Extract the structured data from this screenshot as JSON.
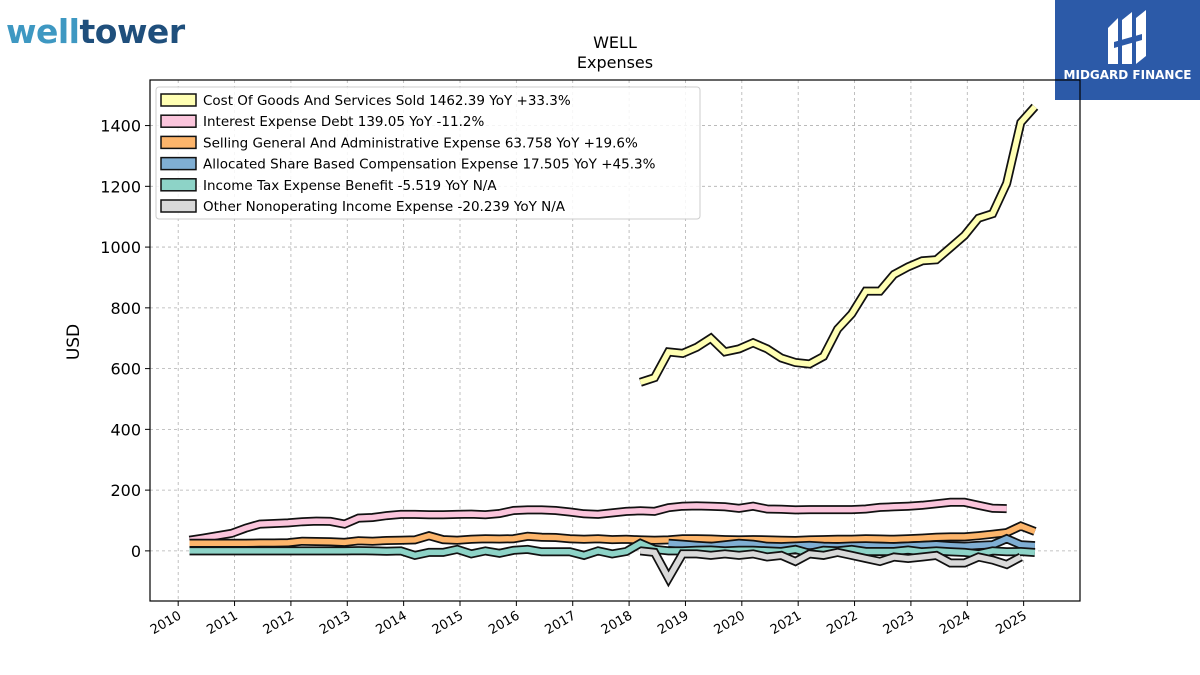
{
  "logos": {
    "left_part1": "well",
    "left_part2": "tower",
    "right_brand": "MIDGARD FINANCE"
  },
  "colors": {
    "cogs": "#ffffb3",
    "interest": "#fbc5dc",
    "sga": "#fdb56b",
    "sbc": "#7faed3",
    "tax": "#8dd3c7",
    "other": "#d9d9d9",
    "outline": "#111111",
    "grid": "#b0b0b0"
  },
  "chart_data": {
    "type": "line",
    "title": "WELL",
    "subtitle": "Expenses",
    "ylabel": "USD",
    "xlabel": "",
    "xlim": [
      2009.5,
      2026.0
    ],
    "ylim": [
      -165,
      1550
    ],
    "yticks": [
      0,
      200,
      400,
      600,
      800,
      1000,
      1200,
      1400
    ],
    "xticks": [
      "2010",
      "2011",
      "2012",
      "2013",
      "2014",
      "2015",
      "2016",
      "2017",
      "2018",
      "2019",
      "2020",
      "2021",
      "2022",
      "2023",
      "2024",
      "2025"
    ],
    "grid": true,
    "legend_position": "top-left",
    "series": [
      {
        "name": "Cost Of Goods And Services Sold  1462.39 YoY +33.3%",
        "color_key": "cogs",
        "x": [
          2018.2,
          2018.45,
          2018.7,
          2018.95,
          2019.2,
          2019.45,
          2019.7,
          2019.95,
          2020.2,
          2020.45,
          2020.7,
          2020.95,
          2021.2,
          2021.45,
          2021.7,
          2021.95,
          2022.2,
          2022.45,
          2022.7,
          2022.95,
          2023.2,
          2023.45,
          2023.7,
          2023.95,
          2024.2,
          2024.45,
          2024.7,
          2024.95,
          2025.2
        ],
        "y": [
          555,
          570,
          655,
          650,
          670,
          700,
          655,
          665,
          685,
          665,
          635,
          620,
          615,
          640,
          730,
          780,
          855,
          855,
          910,
          935,
          955,
          958,
          998,
          1038,
          1095,
          1110,
          1210,
          1410,
          1462
        ]
      },
      {
        "name": "Interest Expense Debt  139.05 YoY -11.2%",
        "color_key": "interest",
        "x": [
          2010.2,
          2010.45,
          2010.7,
          2010.95,
          2011.2,
          2011.45,
          2011.7,
          2011.95,
          2012.2,
          2012.45,
          2012.7,
          2012.95,
          2013.2,
          2013.45,
          2013.7,
          2013.95,
          2014.2,
          2014.45,
          2014.7,
          2014.95,
          2015.2,
          2015.45,
          2015.7,
          2015.95,
          2016.2,
          2016.45,
          2016.7,
          2016.95,
          2017.2,
          2017.45,
          2017.7,
          2017.95,
          2018.2,
          2018.45,
          2018.7,
          2018.95,
          2019.2,
          2019.45,
          2019.7,
          2019.95,
          2020.2,
          2020.45,
          2020.7,
          2020.95,
          2021.2,
          2021.45,
          2021.7,
          2021.95,
          2022.2,
          2022.45,
          2022.7,
          2022.95,
          2023.2,
          2023.45,
          2023.7,
          2023.95,
          2024.2,
          2024.45,
          2024.7
        ],
        "y": [
          35,
          42,
          50,
          58,
          75,
          88,
          90,
          92,
          96,
          98,
          97,
          88,
          108,
          110,
          116,
          120,
          120,
          119,
          119,
          120,
          121,
          119,
          123,
          133,
          135,
          135,
          133,
          128,
          122,
          120,
          125,
          130,
          132,
          130,
          142,
          147,
          148,
          147,
          145,
          140,
          147,
          138,
          137,
          135,
          136,
          136,
          136,
          136,
          138,
          143,
          145,
          147,
          150,
          155,
          160,
          160,
          150,
          140,
          139
        ]
      },
      {
        "name": "Selling General And Administrative Expense  63.758 YoY +19.6%",
        "color_key": "sga",
        "x": [
          2010.2,
          2010.45,
          2010.7,
          2010.95,
          2011.2,
          2011.45,
          2011.7,
          2011.95,
          2012.2,
          2012.45,
          2012.7,
          2012.95,
          2013.2,
          2013.45,
          2013.7,
          2013.95,
          2014.2,
          2014.45,
          2014.7,
          2014.95,
          2015.2,
          2015.45,
          2015.7,
          2015.95,
          2016.2,
          2016.45,
          2016.7,
          2016.95,
          2017.2,
          2017.45,
          2017.7,
          2017.95,
          2018.2,
          2018.45,
          2018.7,
          2018.95,
          2019.2,
          2019.45,
          2019.7,
          2019.95,
          2020.2,
          2020.45,
          2020.7,
          2020.95,
          2021.2,
          2021.45,
          2021.7,
          2021.95,
          2022.2,
          2022.45,
          2022.7,
          2022.95,
          2023.2,
          2023.45,
          2023.7,
          2023.95,
          2024.2,
          2024.45,
          2024.7,
          2024.95,
          2025.2
        ],
        "y": [
          25,
          25,
          25,
          25,
          25,
          26,
          26,
          27,
          32,
          31,
          30,
          28,
          33,
          32,
          34,
          35,
          36,
          50,
          37,
          35,
          38,
          40,
          39,
          40,
          48,
          45,
          44,
          40,
          38,
          40,
          37,
          38,
          36,
          35,
          36,
          40,
          40,
          39,
          37,
          36,
          37,
          36,
          35,
          34,
          36,
          37,
          38,
          38,
          40,
          39,
          38,
          40,
          42,
          45,
          46,
          46,
          50,
          55,
          60,
          82,
          64
        ]
      },
      {
        "name": "Allocated Share Based Compensation Expense  17.505 YoY +45.3%",
        "color_key": "sbc",
        "x": [
          2018.7,
          2018.95,
          2019.2,
          2019.45,
          2019.7,
          2019.95,
          2020.2,
          2020.45,
          2020.7,
          2020.95,
          2021.2,
          2021.45,
          2021.7,
          2021.95,
          2022.2,
          2022.45,
          2022.7,
          2022.95,
          2023.2,
          2023.45,
          2023.7,
          2023.95,
          2024.2,
          2024.45,
          2024.7,
          2024.95,
          2025.2
        ],
        "y": [
          25,
          22,
          18,
          15,
          20,
          25,
          22,
          15,
          14,
          16,
          18,
          15,
          14,
          16,
          17,
          15,
          14,
          16,
          18,
          20,
          17,
          15,
          18,
          20,
          40,
          20,
          17.5
        ]
      },
      {
        "name": "Income Tax Expense Benefit  -5.519 YoY N/A",
        "color_key": "tax",
        "x": [
          2010.2,
          2010.45,
          2010.7,
          2010.95,
          2011.2,
          2011.45,
          2011.7,
          2011.95,
          2012.2,
          2012.45,
          2012.7,
          2012.95,
          2013.2,
          2013.45,
          2013.7,
          2013.95,
          2014.2,
          2014.45,
          2014.7,
          2014.95,
          2015.2,
          2015.45,
          2015.7,
          2015.95,
          2016.2,
          2016.45,
          2016.7,
          2016.95,
          2017.2,
          2017.45,
          2017.7,
          2017.95,
          2018.2,
          2018.45,
          2018.7,
          2018.95,
          2019.2,
          2019.45,
          2019.7,
          2019.95,
          2020.2,
          2020.45,
          2020.7,
          2020.95,
          2021.2,
          2021.45,
          2021.7,
          2021.95,
          2022.2,
          2022.45,
          2022.7,
          2022.95,
          2023.2,
          2023.45,
          2023.7,
          2023.95,
          2024.2,
          2024.45,
          2024.7,
          2024.95,
          2025.2
        ],
        "y": [
          0,
          0,
          0,
          0,
          0,
          0,
          0,
          0,
          0,
          0,
          0,
          0,
          1,
          0,
          -1,
          0,
          -15,
          -5,
          -5,
          5,
          -10,
          0,
          -8,
          2,
          5,
          -3,
          -3,
          -3,
          -15,
          0,
          -10,
          -2,
          25,
          5,
          0,
          0,
          2,
          3,
          0,
          2,
          2,
          0,
          -2,
          5,
          -8,
          2,
          0,
          5,
          -2,
          -2,
          -2,
          3,
          -3,
          0,
          -3,
          -5,
          -10,
          0,
          -3,
          -2,
          -5.5
        ]
      },
      {
        "name": "Other Nonoperating Income Expense  -20.239 YoY N/A",
        "color_key": "other",
        "x": [
          2018.2,
          2018.45,
          2018.7,
          2018.95,
          2019.2,
          2019.45,
          2019.7,
          2019.95,
          2020.2,
          2020.45,
          2020.7,
          2020.95,
          2021.2,
          2021.45,
          2021.7,
          2021.95,
          2022.2,
          2022.45,
          2022.7,
          2022.95,
          2023.2,
          2023.45,
          2023.7,
          2023.95,
          2024.2,
          2024.45,
          2024.7,
          2024.95
        ],
        "y": [
          0,
          -5,
          -90,
          -10,
          -10,
          -15,
          -10,
          -15,
          -10,
          -20,
          -15,
          -35,
          -10,
          -15,
          -5,
          -15,
          -25,
          -35,
          -20,
          -25,
          -20,
          -15,
          -40,
          -40,
          -20,
          -30,
          -45,
          -20
        ]
      }
    ]
  }
}
